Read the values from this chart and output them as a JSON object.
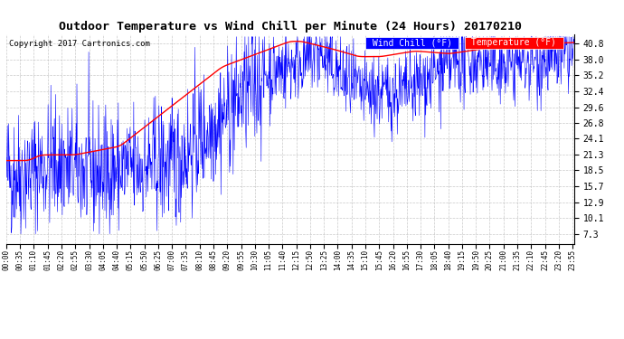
{
  "title": "Outdoor Temperature vs Wind Chill per Minute (24 Hours) 20170210",
  "copyright": "Copyright 2017 Cartronics.com",
  "legend_label_wc": "Wind Chill (°F)",
  "legend_label_temp": "Temperature (°F)",
  "wind_chill_color": "blue",
  "temp_color": "red",
  "background_color": "white",
  "grid_color": "#bbbbbb",
  "title_fontsize": 9.5,
  "copyright_fontsize": 6.5,
  "legend_fontsize": 7,
  "ylabel_right_values": [
    7.3,
    10.1,
    12.9,
    15.7,
    18.5,
    21.3,
    24.1,
    26.8,
    29.6,
    32.4,
    35.2,
    38.0,
    40.8
  ],
  "ylim": [
    5.5,
    42.5
  ],
  "num_minutes": 1440,
  "seed": 42,
  "tick_interval": 35
}
